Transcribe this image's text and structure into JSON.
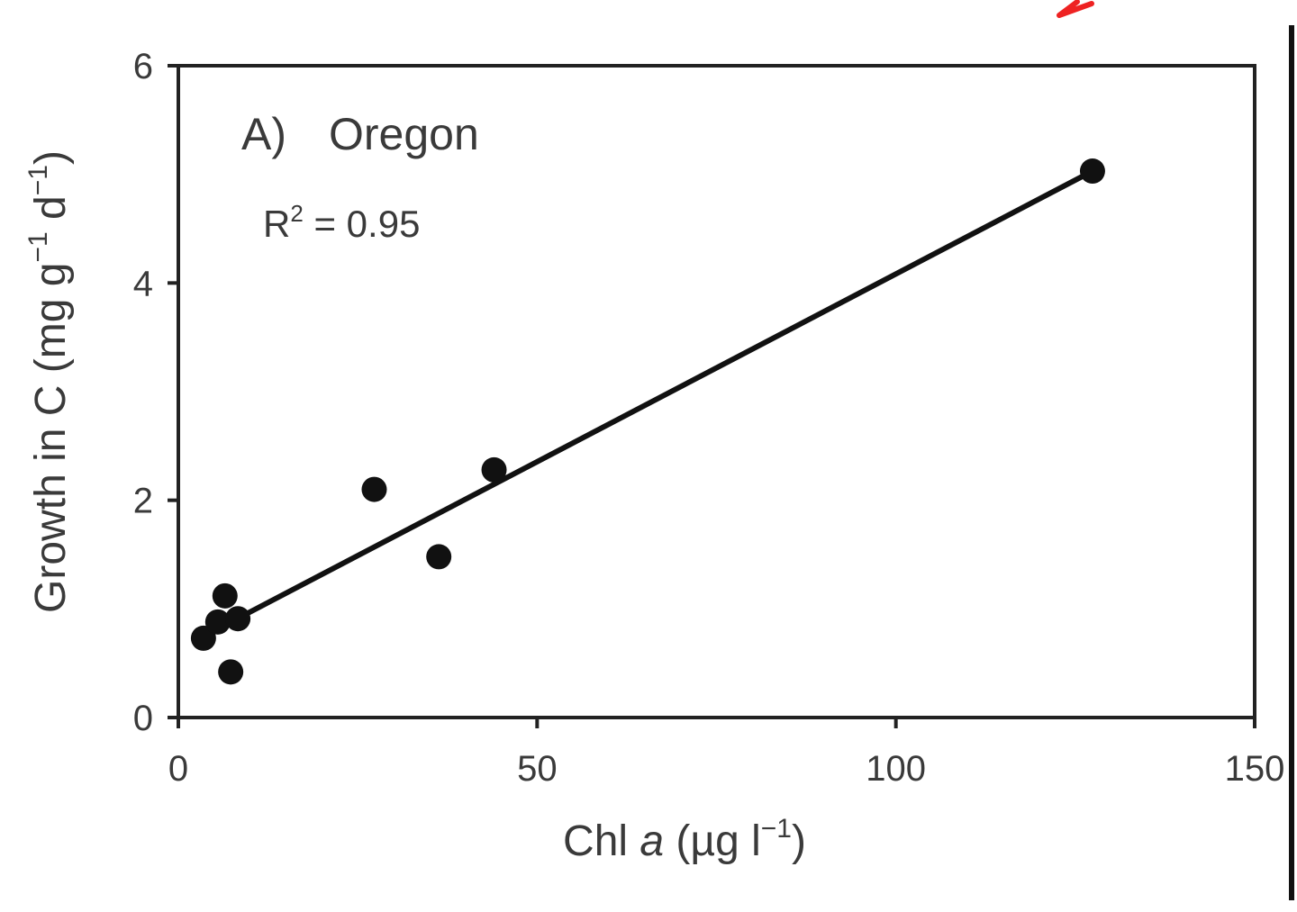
{
  "chart_data": {
    "type": "scatter",
    "panel_label": "A)",
    "title": "Oregon",
    "annotation": {
      "r2_symbol": "R",
      "r2_exponent": "2",
      "r2_value": " = 0.95"
    },
    "xlabel": {
      "prefix": "Chl ",
      "italic": "a",
      "unit_open": " (µg l",
      "unit_exp": "−1",
      "unit_close": ")"
    },
    "ylabel": {
      "main": "Growth in C (mg g",
      "exp1": "−1",
      "mid": " d",
      "exp2": "−1",
      "close": ")"
    },
    "xlim": [
      0,
      150
    ],
    "ylim": [
      0,
      6
    ],
    "xticks": [
      0,
      50,
      100,
      150
    ],
    "xtick_labels": [
      "0",
      "50",
      "100",
      "150"
    ],
    "yticks": [
      0,
      2,
      4,
      6
    ],
    "ytick_labels": [
      "0",
      "2",
      "4",
      "6"
    ],
    "grid": false,
    "points": [
      {
        "x": 3.5,
        "y": 0.73
      },
      {
        "x": 5.5,
        "y": 0.88
      },
      {
        "x": 6.5,
        "y": 1.12
      },
      {
        "x": 7.3,
        "y": 0.42
      },
      {
        "x": 8.3,
        "y": 0.91
      },
      {
        "x": 27.3,
        "y": 2.1
      },
      {
        "x": 36.3,
        "y": 1.48
      },
      {
        "x": 44.0,
        "y": 2.28
      },
      {
        "x": 127.4,
        "y": 5.03
      }
    ],
    "fit_line": {
      "x": [
        8.5,
        127.4
      ],
      "y": [
        0.92,
        5.03
      ]
    },
    "colors": {
      "points": "#111111",
      "line": "#111111",
      "axes": "#222222",
      "text": "#3a3a3a",
      "annotation_mark": "#ee2222"
    }
  }
}
